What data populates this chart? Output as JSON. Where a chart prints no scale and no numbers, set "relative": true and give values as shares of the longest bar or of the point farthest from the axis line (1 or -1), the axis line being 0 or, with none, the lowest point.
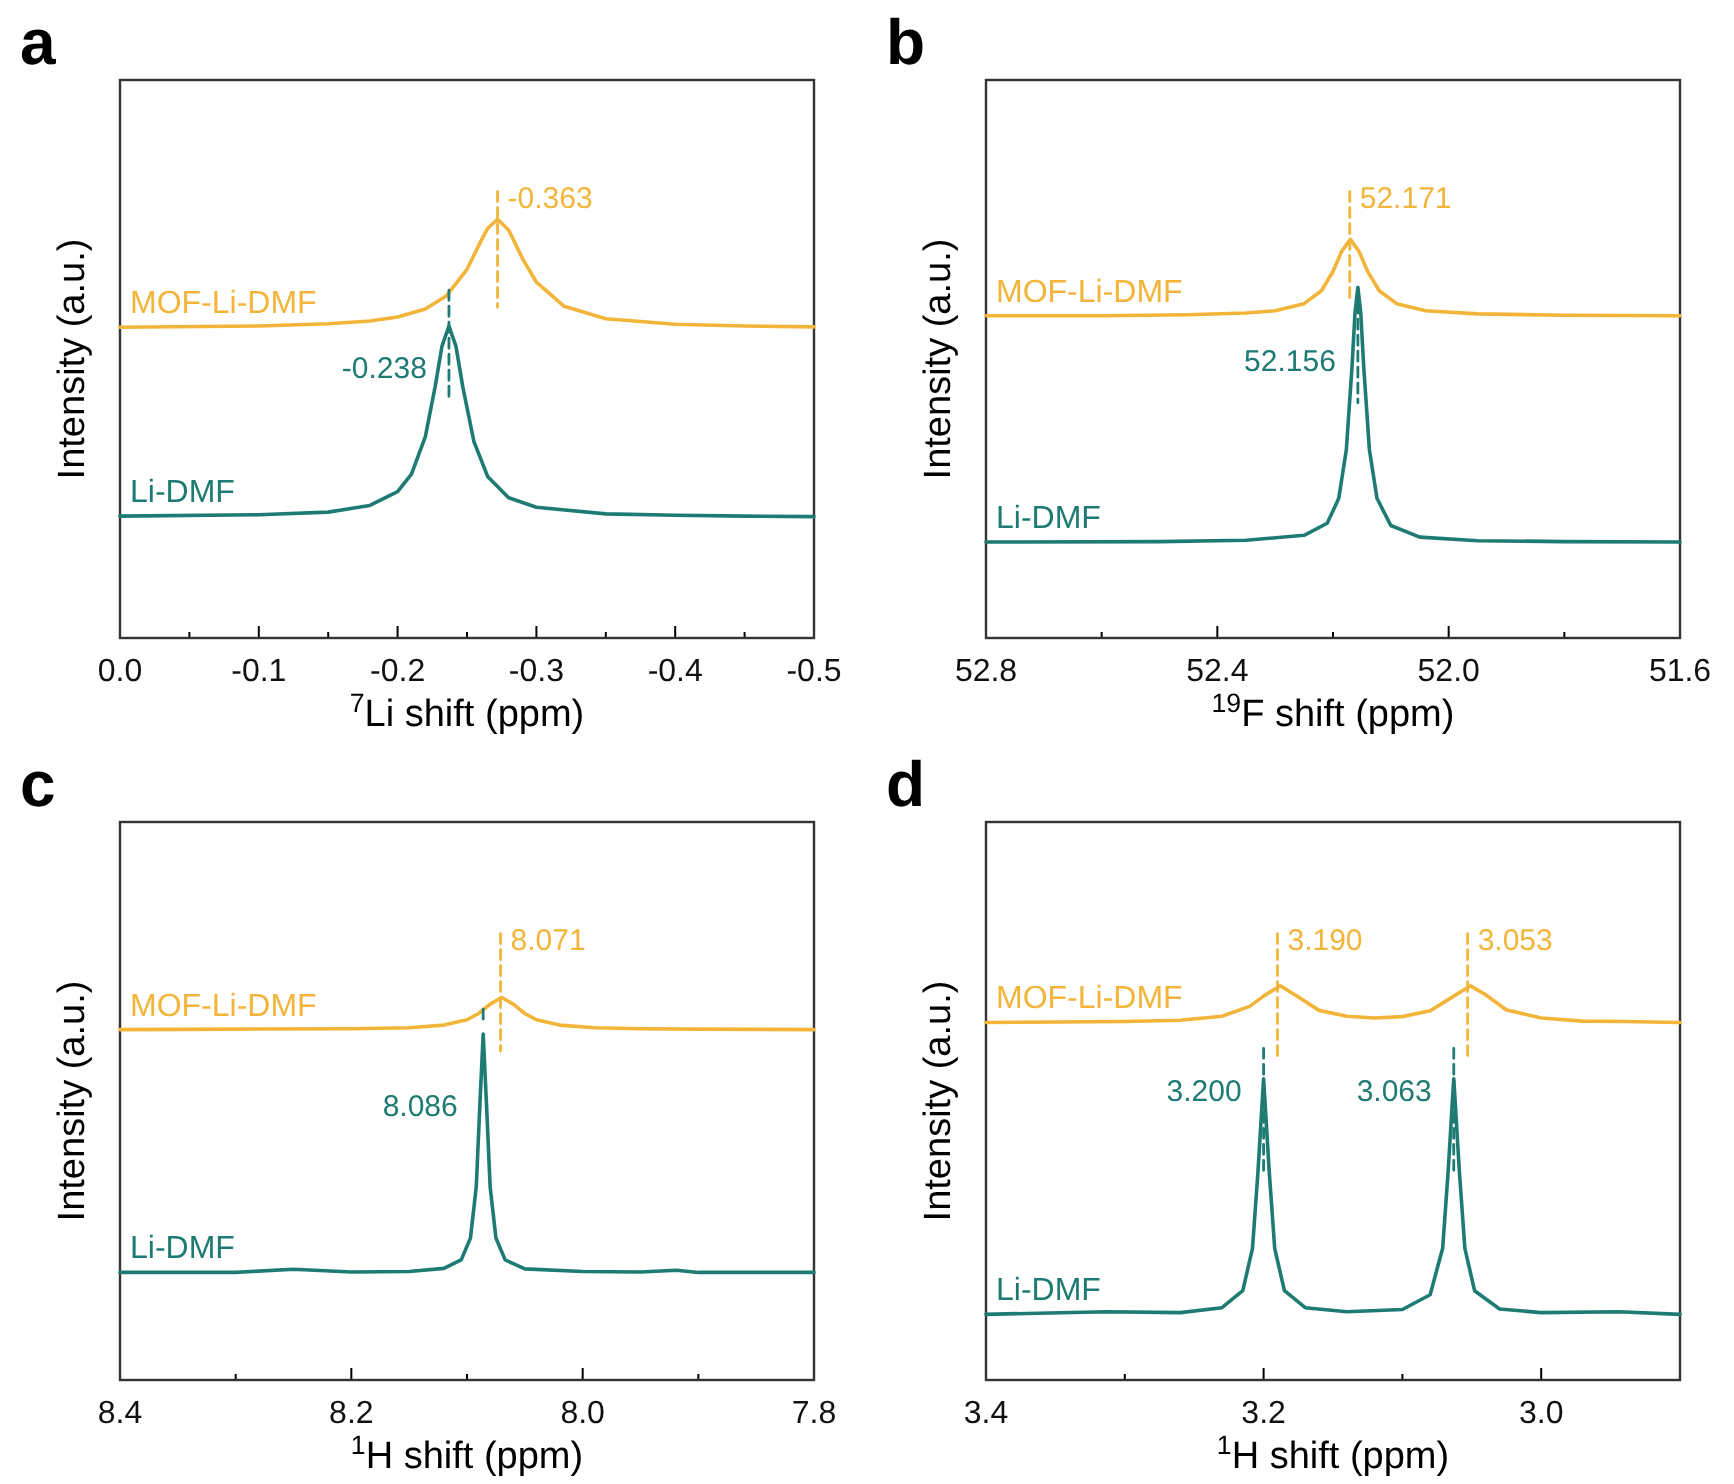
{
  "chart_data": [
    {
      "type": "line",
      "title": "a",
      "xlabel": "$^{7}$Li shift (ppm)",
      "ylabel": "Intensity (a.u.)",
      "relative": true,
      "xlim": [
        0,
        -0.5
      ],
      "xticks": [
        {
          "value": 0,
          "label": "0.0"
        },
        {
          "value": -0.05,
          "label": null
        },
        -0.1,
        {
          "value": -0.15,
          "label": null
        },
        -0.2,
        {
          "value": -0.25,
          "label": null
        },
        -0.3,
        {
          "value": -0.35,
          "label": null
        },
        -0.4,
        {
          "value": -0.45,
          "label": null
        },
        -0.5
      ],
      "series": [
        {
          "name": "MOF-Li-DMF",
          "color": "#f2b53a",
          "x": [
            0,
            -0.1,
            -0.15,
            -0.18,
            -0.2,
            -0.22,
            -0.235,
            -0.25,
            -0.26,
            -0.265,
            -0.272,
            -0.28,
            -0.29,
            -0.3,
            -0.32,
            -0.35,
            -0.4,
            -0.45,
            -0.5
          ],
          "values": [
            0.696,
            0.699,
            0.704,
            0.71,
            0.719,
            0.737,
            0.766,
            0.826,
            0.889,
            0.918,
            0.938,
            0.914,
            0.85,
            0.797,
            0.743,
            0.715,
            0.703,
            0.699,
            0.697
          ]
        },
        {
          "name": "Li-DMF",
          "color": "#1e7b73",
          "x": [
            0,
            -0.1,
            -0.15,
            -0.18,
            -0.2,
            -0.21,
            -0.22,
            -0.227,
            -0.232,
            -0.237,
            -0.242,
            -0.247,
            -0.255,
            -0.265,
            -0.28,
            -0.3,
            -0.35,
            -0.4,
            -0.45,
            -0.5
          ],
          "values": [
            0.273,
            0.276,
            0.282,
            0.297,
            0.328,
            0.367,
            0.451,
            0.562,
            0.654,
            0.699,
            0.654,
            0.562,
            0.44,
            0.361,
            0.314,
            0.293,
            0.278,
            0.275,
            0.273,
            0.272
          ]
        },
        {
          "color": "#f2b53a",
          "line_style": "dashed",
          "x": [
            -0.272,
            -0.272
          ],
          "values": [
            1,
            0.741
          ]
        },
        {
          "color": "#1e7b73",
          "line_style": "dashed",
          "x": [
            -0.237,
            -0.237
          ],
          "values": [
            0.779,
            0.531
          ]
        }
      ],
      "annotations": [
        {
          "text": "-0.363",
          "x": -0.272,
          "y": 0.98
        },
        {
          "text": "-0.238",
          "x": -0.237,
          "y": 0.6
        }
      ]
    },
    {
      "type": "line",
      "title": "b",
      "xlabel": "$^{19}$F shift (ppm)",
      "ylabel": "Intensity (a.u.)",
      "relative": true,
      "xlim": [
        52.8,
        51.6
      ],
      "xticks": [
        52.8,
        {
          "value": 52.6,
          "label": null
        },
        52.4,
        {
          "value": 52.2,
          "label": null
        },
        {
          "value": 52,
          "label": "52.0"
        },
        {
          "value": 51.8,
          "label": null
        },
        51.6
      ],
      "series": [
        {
          "name": "MOF-Li-DMF",
          "color": "#f2b53a",
          "x": [
            52.8,
            52.6,
            52.45,
            52.35,
            52.3,
            52.25,
            52.22,
            52.2,
            52.185,
            52.17,
            52.155,
            52.14,
            52.12,
            52.09,
            52.04,
            51.95,
            51.8,
            51.6
          ],
          "values": [
            0.722,
            0.722,
            0.724,
            0.728,
            0.733,
            0.749,
            0.778,
            0.821,
            0.866,
            0.893,
            0.866,
            0.821,
            0.778,
            0.749,
            0.733,
            0.726,
            0.723,
            0.722
          ]
        },
        {
          "name": "Li-DMF",
          "color": "#1e7b73",
          "x": [
            52.8,
            52.5,
            52.35,
            52.25,
            52.21,
            52.19,
            52.177,
            52.167,
            52.162,
            52.157,
            52.152,
            52.147,
            52.137,
            52.124,
            52.1,
            52.05,
            51.95,
            51.8,
            51.6
          ],
          "values": [
            0.215,
            0.216,
            0.219,
            0.23,
            0.257,
            0.313,
            0.421,
            0.61,
            0.728,
            0.785,
            0.728,
            0.61,
            0.421,
            0.313,
            0.252,
            0.226,
            0.218,
            0.216,
            0.215
          ]
        },
        {
          "color": "#f2b53a",
          "line_style": "dashed",
          "x": [
            52.171,
            52.171
          ],
          "values": [
            1,
            0.755
          ]
        },
        {
          "color": "#1e7b73",
          "line_style": "dashed",
          "x": [
            52.157,
            52.157
          ],
          "values": [
            0.786,
            0.527
          ]
        }
      ],
      "annotations": [
        {
          "text": "52.171",
          "x": 52.171,
          "y": 0.98
        },
        {
          "text": "52.156",
          "x": 52.157,
          "y": 0.616
        }
      ]
    },
    {
      "type": "line",
      "title": "c",
      "xlabel": "$^{1}$H shift (ppm)",
      "ylabel": "Intensity (a.u.)",
      "relative": true,
      "xlim": [
        8.4,
        7.8
      ],
      "xticks": [
        8.4,
        {
          "value": 8.3,
          "label": null
        },
        8.2,
        {
          "value": 8.1,
          "label": null
        },
        {
          "value": 8,
          "label": "8.0"
        },
        {
          "value": 7.9,
          "label": null
        },
        7.8
      ],
      "series": [
        {
          "name": "MOF-Li-DMF",
          "color": "#f2b53a",
          "x": [
            8.4,
            8.3,
            8.2,
            8.15,
            8.12,
            8.1,
            8.09,
            8.08,
            8.07,
            8.06,
            8.05,
            8.04,
            8.02,
            7.99,
            7.95,
            7.9,
            7.8
          ],
          "values": [
            0.785,
            0.786,
            0.787,
            0.789,
            0.795,
            0.807,
            0.821,
            0.842,
            0.857,
            0.842,
            0.821,
            0.807,
            0.795,
            0.789,
            0.787,
            0.786,
            0.785
          ]
        },
        {
          "name": "Li-DMF",
          "color": "#1e7b73",
          "x": [
            8.4,
            8.3,
            8.25,
            8.2,
            8.15,
            8.12,
            8.105,
            8.097,
            8.092,
            8.089,
            8.086,
            8.083,
            8.08,
            8.075,
            8.067,
            8.05,
            8.0,
            7.95,
            7.919,
            7.9,
            7.8
          ],
          "values": [
            0.241,
            0.241,
            0.248,
            0.242,
            0.243,
            0.25,
            0.269,
            0.318,
            0.433,
            0.609,
            0.775,
            0.609,
            0.433,
            0.318,
            0.269,
            0.249,
            0.243,
            0.242,
            0.246,
            0.241,
            0.241
          ]
        },
        {
          "color": "#f2b53a",
          "line_style": "dashed",
          "x": [
            8.071,
            8.071
          ],
          "values": [
            1,
            0.737
          ]
        },
        {
          "color": "#1e7b73",
          "line_style": "dashed",
          "x": [
            8.086,
            8.086
          ],
          "values": [
            0.831,
            0.797
          ]
        }
      ],
      "annotations": [
        {
          "text": "8.071",
          "x": 8.071,
          "y": 0.98
        },
        {
          "text": "8.086",
          "x": 8.089,
          "y": 0.609
        }
      ]
    },
    {
      "type": "line",
      "title": "d",
      "xlabel": "$^{1}$H shift (ppm)",
      "ylabel": "Intensity (a.u.)",
      "relative": true,
      "xlim": [
        3.4,
        2.9
      ],
      "xticks": [
        3.4,
        {
          "value": 3.3,
          "label": null
        },
        3.2,
        {
          "value": 3.1,
          "label": null
        },
        {
          "value": 3,
          "label": "3.0"
        }
      ],
      "series": [
        {
          "name": "MOF-Li-DMF",
          "color": "#f2b53a",
          "x": [
            3.4,
            3.35,
            3.3,
            3.26,
            3.23,
            3.21,
            3.2,
            3.188,
            3.175,
            3.16,
            3.14,
            3.12,
            3.1,
            3.08,
            3.065,
            3.051,
            3.04,
            3.025,
            3.0,
            2.97,
            2.94,
            2.9
          ],
          "values": [
            0.801,
            0.802,
            0.803,
            0.806,
            0.815,
            0.837,
            0.86,
            0.883,
            0.858,
            0.828,
            0.815,
            0.811,
            0.814,
            0.827,
            0.856,
            0.883,
            0.863,
            0.829,
            0.811,
            0.804,
            0.803,
            0.801
          ]
        },
        {
          "name": "Li-DMF",
          "color": "#1e7b73",
          "x": [
            3.4,
            3.313,
            3.26,
            3.23,
            3.215,
            3.208,
            3.204,
            3.2,
            3.196,
            3.192,
            3.185,
            3.17,
            3.14,
            3.1,
            3.08,
            3.071,
            3.067,
            3.063,
            3.059,
            3.055,
            3.048,
            3.03,
            3.0,
            2.944,
            2.9
          ],
          "values": [
            0.147,
            0.153,
            0.151,
            0.162,
            0.2,
            0.295,
            0.469,
            0.675,
            0.469,
            0.295,
            0.2,
            0.162,
            0.153,
            0.158,
            0.191,
            0.295,
            0.469,
            0.675,
            0.469,
            0.295,
            0.2,
            0.159,
            0.151,
            0.153,
            0.147
          ]
        },
        {
          "color": "#f2b53a",
          "line_style": "dashed",
          "x": [
            3.19,
            3.19,
            3.12,
            3.053,
            3.053
          ],
          "values": [
            1,
            0.72,
            null,
            1,
            0.72
          ]
        },
        {
          "color": "#1e7b73",
          "line_style": "dashed",
          "x": [
            3.2,
            3.2,
            3.13,
            3.063,
            3.063
          ],
          "values": [
            0.743,
            0.466,
            null,
            0.743,
            0.466
          ]
        }
      ],
      "annotations": [
        {
          "text": "3.190",
          "x": 3.19,
          "y": 0.98
        },
        {
          "text": "3.053",
          "x": 3.053,
          "y": 0.98
        },
        {
          "text": "3.200",
          "x": 3.2,
          "y": 0.642
        },
        {
          "text": "3.063",
          "x": 3.063,
          "y": 0.642
        }
      ]
    }
  ]
}
